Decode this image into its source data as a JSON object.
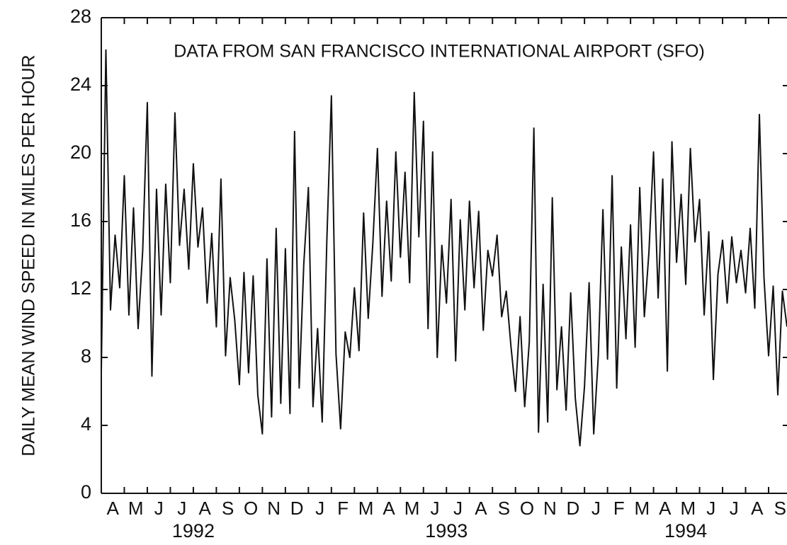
{
  "chart_data": {
    "type": "line",
    "annotation": "DATA FROM SAN FRANCISCO INTERNATIONAL AIRPORT (SFO)",
    "y_label": "DAILY MEAN WIND SPEED IN MILES PER HOUR",
    "color": "#111111",
    "x": [
      3.0,
      3.2,
      3.4,
      3.6,
      3.8,
      4.0,
      4.2,
      4.4,
      4.6,
      4.8,
      5.0,
      5.2,
      5.4,
      5.6,
      5.8,
      6.0,
      6.2,
      6.4,
      6.6,
      6.8,
      7.0,
      7.2,
      7.4,
      7.6,
      7.8,
      8.0,
      8.2,
      8.4,
      8.6,
      8.8,
      9.0,
      9.2,
      9.4,
      9.6,
      9.8,
      10.0,
      10.2,
      10.4,
      10.6,
      10.8,
      11.0,
      11.2,
      11.4,
      11.6,
      11.8,
      12.0,
      12.2,
      12.4,
      12.6,
      12.8,
      13.0,
      13.2,
      13.4,
      13.6,
      13.8,
      14.0,
      14.2,
      14.4,
      14.6,
      14.8,
      15.0,
      15.2,
      15.4,
      15.6,
      15.8,
      16.0,
      16.2,
      16.4,
      16.6,
      16.8,
      17.0,
      17.2,
      17.4,
      17.6,
      17.8,
      18.0,
      18.2,
      18.4,
      18.6,
      18.8,
      19.0,
      19.2,
      19.4,
      19.6,
      19.8,
      20.0,
      20.2,
      20.4,
      20.6,
      20.8,
      21.0,
      21.2,
      21.4,
      21.6,
      21.8,
      22.0,
      22.2,
      22.4,
      22.6,
      22.8,
      23.0,
      23.2,
      23.4,
      23.6,
      23.8,
      24.0,
      24.2,
      24.4,
      24.6,
      24.8,
      25.0,
      25.2,
      25.4,
      25.6,
      25.8,
      26.0,
      26.2,
      26.4,
      26.6,
      26.8,
      27.0,
      27.2,
      27.4,
      27.6,
      27.8,
      28.0,
      28.2,
      28.4,
      28.6,
      28.8,
      29.0,
      29.2,
      29.4,
      29.6,
      29.8,
      30.0,
      30.2,
      30.4,
      30.6,
      30.8,
      31.0,
      31.2,
      31.4,
      31.6,
      31.8,
      32.0,
      32.2,
      32.4,
      32.6,
      32.8
    ],
    "values": [
      7.2,
      26.1,
      10.8,
      15.2,
      12.1,
      18.7,
      10.5,
      16.8,
      9.7,
      14.3,
      23.0,
      6.9,
      17.9,
      10.5,
      18.2,
      12.4,
      22.4,
      14.6,
      17.9,
      13.2,
      19.4,
      14.5,
      16.8,
      11.2,
      15.3,
      9.8,
      18.5,
      8.1,
      12.7,
      10.2,
      6.4,
      13.0,
      7.1,
      12.8,
      5.8,
      3.5,
      13.8,
      4.5,
      15.6,
      5.3,
      14.4,
      4.7,
      21.3,
      6.2,
      13.5,
      18.0,
      5.1,
      9.7,
      4.2,
      14.8,
      23.4,
      8.2,
      3.8,
      9.5,
      8.0,
      12.1,
      8.4,
      16.5,
      10.3,
      14.7,
      20.3,
      11.6,
      17.2,
      12.5,
      20.1,
      13.9,
      18.9,
      12.4,
      23.6,
      15.1,
      21.9,
      9.7,
      20.1,
      8.0,
      14.6,
      11.2,
      17.3,
      7.8,
      16.1,
      10.8,
      17.2,
      12.1,
      16.6,
      9.6,
      14.3,
      12.8,
      15.2,
      10.4,
      11.9,
      8.7,
      6.0,
      10.4,
      5.1,
      8.9,
      21.5,
      3.6,
      12.3,
      4.2,
      17.4,
      6.1,
      9.8,
      4.9,
      11.8,
      5.6,
      2.8,
      6.3,
      12.4,
      3.5,
      8.1,
      16.7,
      7.9,
      18.7,
      6.2,
      14.5,
      9.1,
      15.8,
      8.6,
      18.0,
      10.4,
      14.2,
      20.1,
      11.5,
      18.5,
      7.2,
      20.7,
      13.6,
      17.6,
      12.3,
      20.3,
      14.8,
      17.3,
      10.5,
      15.4,
      6.7,
      12.9,
      14.9,
      11.2,
      15.1,
      12.4,
      14.3,
      11.8,
      15.6,
      10.9,
      22.3,
      12.7,
      8.1,
      12.2,
      5.8,
      11.9,
      9.8
    ],
    "xlim": [
      3,
      32.8
    ],
    "xticks": [
      {
        "value": 3,
        "label": "A"
      },
      {
        "value": 4,
        "label": "M"
      },
      {
        "value": 5,
        "label": "J"
      },
      {
        "value": 6,
        "label": "J"
      },
      {
        "value": 7,
        "label": "A"
      },
      {
        "value": 8,
        "label": "S"
      },
      {
        "value": 9,
        "label": "O"
      },
      {
        "value": 10,
        "label": "N"
      },
      {
        "value": 11,
        "label": "D"
      },
      {
        "value": 12,
        "label": "J"
      },
      {
        "value": 13,
        "label": "F"
      },
      {
        "value": 14,
        "label": "M"
      },
      {
        "value": 15,
        "label": "A"
      },
      {
        "value": 16,
        "label": "M"
      },
      {
        "value": 17,
        "label": "J"
      },
      {
        "value": 18,
        "label": "J"
      },
      {
        "value": 19,
        "label": "A"
      },
      {
        "value": 20,
        "label": "S"
      },
      {
        "value": 21,
        "label": "O"
      },
      {
        "value": 22,
        "label": "N"
      },
      {
        "value": 23,
        "label": "D"
      },
      {
        "value": 24,
        "label": "J"
      },
      {
        "value": 25,
        "label": "F"
      },
      {
        "value": 26,
        "label": "M"
      },
      {
        "value": 27,
        "label": "A"
      },
      {
        "value": 28,
        "label": "M"
      },
      {
        "value": 29,
        "label": "J"
      },
      {
        "value": 30,
        "label": "J"
      },
      {
        "value": 31,
        "label": "A"
      },
      {
        "value": 32,
        "label": "S"
      }
    ],
    "year_labels": [
      {
        "value": 7,
        "label": "1992"
      },
      {
        "value": 18,
        "label": "1993"
      },
      {
        "value": 28.4,
        "label": "1994"
      }
    ],
    "ylim": [
      0,
      28
    ],
    "yticks": [
      0,
      4,
      8,
      12,
      16,
      20,
      24,
      28
    ],
    "grid": false
  }
}
